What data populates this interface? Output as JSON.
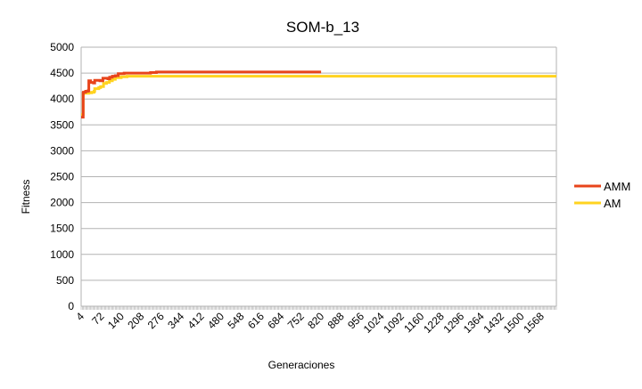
{
  "chart_data": {
    "type": "line",
    "title": "SOM-b_13",
    "xlabel": "Generaciones",
    "ylabel": "Fitness",
    "ylim": [
      0,
      5000
    ],
    "yticks": [
      0,
      500,
      1000,
      1500,
      2000,
      2500,
      3000,
      3500,
      4000,
      4500,
      5000
    ],
    "xlim": [
      4,
      1620
    ],
    "xticks": [
      4,
      72,
      140,
      208,
      276,
      344,
      412,
      480,
      548,
      616,
      684,
      752,
      820,
      888,
      956,
      1024,
      1092,
      1160,
      1228,
      1296,
      1364,
      1432,
      1500,
      1568
    ],
    "grid": "horizontal",
    "legend_position": "right",
    "series": [
      {
        "name": "AMM",
        "color": "#e8441b",
        "x": [
          4,
          5,
          11,
          12,
          18,
          20,
          28,
          30,
          36,
          42,
          46,
          50,
          60,
          64,
          68,
          72,
          78,
          84,
          90,
          95,
          98,
          101,
          106,
          110,
          120,
          130,
          150,
          160,
          200,
          220,
          240,
          260,
          300,
          400,
          500,
          600,
          700,
          800,
          820
        ],
        "y": [
          3650,
          3650,
          4120,
          4130,
          4140,
          4150,
          4160,
          4350,
          4320,
          4320,
          4310,
          4360,
          4360,
          4360,
          4350,
          4350,
          4400,
          4400,
          4400,
          4390,
          4390,
          4420,
          4420,
          4440,
          4450,
          4490,
          4500,
          4500,
          4500,
          4500,
          4510,
          4520,
          4520,
          4520,
          4520,
          4520,
          4520,
          4520,
          4520
        ]
      },
      {
        "name": "AM",
        "color": "#ffd320",
        "x": [
          4,
          5,
          11,
          12,
          30,
          40,
          48,
          50,
          64,
          70,
          80,
          90,
          100,
          110,
          120,
          140,
          160,
          200,
          300,
          500,
          800,
          1000,
          1200,
          1400,
          1620
        ],
        "y": [
          3700,
          3700,
          4100,
          4110,
          4120,
          4130,
          4150,
          4200,
          4220,
          4240,
          4300,
          4320,
          4350,
          4380,
          4410,
          4430,
          4440,
          4440,
          4440,
          4440,
          4440,
          4440,
          4440,
          4440,
          4440
        ]
      }
    ]
  }
}
